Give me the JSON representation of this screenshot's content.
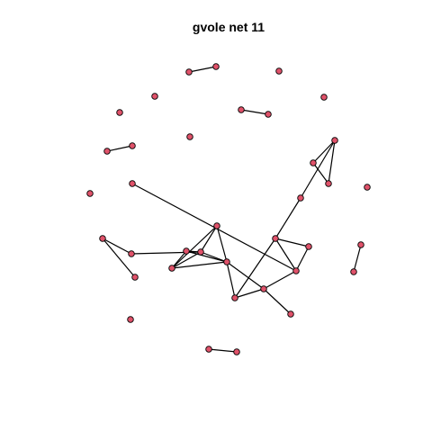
{
  "title": "gvole net 11",
  "node_fill": "#e0526a",
  "node_stroke": "#000000",
  "edge_color": "#000000",
  "nodes": [
    {
      "id": "n1"
    },
    {
      "id": "n2"
    },
    {
      "id": "n3"
    },
    {
      "id": "n4"
    },
    {
      "id": "n5"
    },
    {
      "id": "n6"
    },
    {
      "id": "n7"
    },
    {
      "id": "n8"
    },
    {
      "id": "n9"
    },
    {
      "id": "n10"
    },
    {
      "id": "n11"
    },
    {
      "id": "n12"
    },
    {
      "id": "n13"
    },
    {
      "id": "n14"
    },
    {
      "id": "n15"
    },
    {
      "id": "n16"
    },
    {
      "id": "n17"
    },
    {
      "id": "n18"
    },
    {
      "id": "n19"
    },
    {
      "id": "n20"
    },
    {
      "id": "n21"
    },
    {
      "id": "n22"
    },
    {
      "id": "n23"
    },
    {
      "id": "n24"
    },
    {
      "id": "n25"
    },
    {
      "id": "n26"
    },
    {
      "id": "n27"
    },
    {
      "id": "n28"
    },
    {
      "id": "n29"
    },
    {
      "id": "n30"
    },
    {
      "id": "n31"
    },
    {
      "id": "n32"
    },
    {
      "id": "n33"
    },
    {
      "id": "n34"
    },
    {
      "id": "n35"
    },
    {
      "id": "n36"
    }
  ],
  "edges": [
    [
      "n1",
      "n2"
    ],
    [
      "n5",
      "n6"
    ],
    [
      "n10",
      "n9"
    ],
    [
      "n14",
      "n13"
    ],
    [
      "n14",
      "n16"
    ],
    [
      "n13",
      "n16"
    ],
    [
      "n16",
      "n15"
    ],
    [
      "n15",
      "n21"
    ],
    [
      "n19",
      "n25"
    ],
    [
      "n19",
      "n22"
    ],
    [
      "n22",
      "n23"
    ],
    [
      "n20",
      "n23"
    ],
    [
      "n20",
      "n24"
    ],
    [
      "n20",
      "n26"
    ],
    [
      "n23",
      "n26"
    ],
    [
      "n24",
      "n26"
    ],
    [
      "n23",
      "n24"
    ],
    [
      "n26",
      "n17"
    ],
    [
      "n26",
      "n31"
    ],
    [
      "n26",
      "n30"
    ],
    [
      "n21",
      "n28"
    ],
    [
      "n21",
      "n27"
    ],
    [
      "n21",
      "n30"
    ],
    [
      "n27",
      "n29"
    ],
    [
      "n27",
      "n31"
    ],
    [
      "n31",
      "n30"
    ],
    [
      "n31",
      "n33"
    ],
    [
      "n17",
      "n23"
    ],
    [
      "n17",
      "n24"
    ],
    [
      "n28",
      "n29"
    ],
    [
      "n32",
      "n34"
    ],
    [
      "n35",
      "n36"
    ]
  ]
}
